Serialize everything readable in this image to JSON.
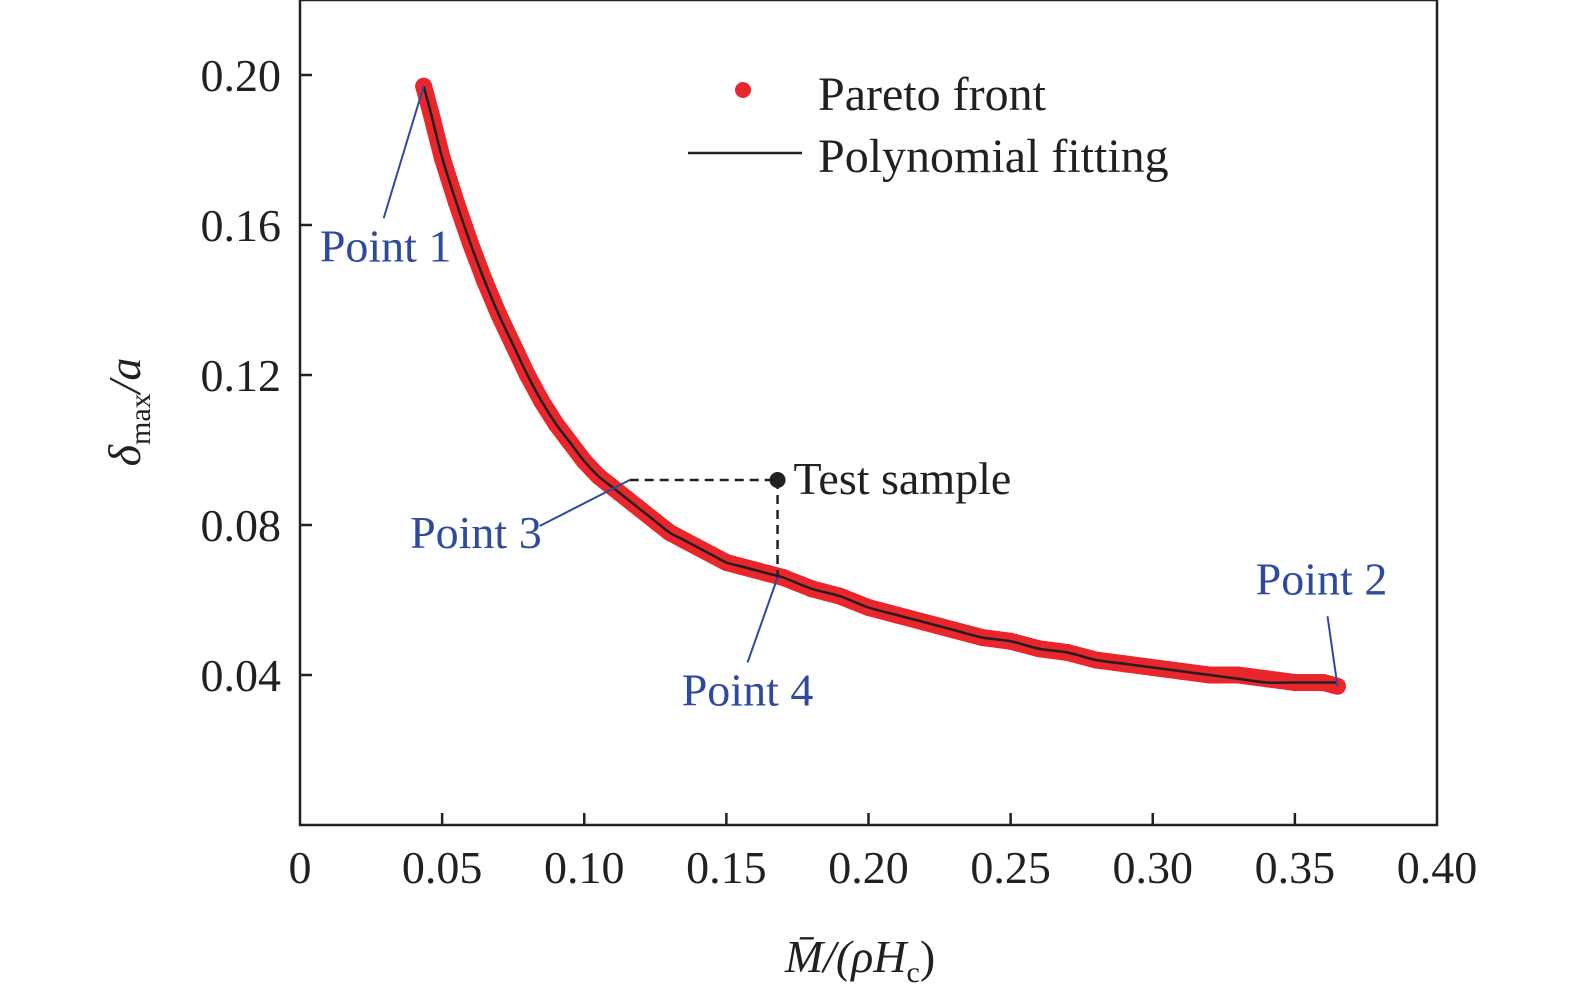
{
  "chart_data": {
    "type": "scatter",
    "xlabel": {
      "main": "M̄/(ρH",
      "sub": "c",
      "close": ")"
    },
    "ylabel": {
      "main": "δ",
      "sub": "max",
      "rest": "/a"
    },
    "xlim": [
      0,
      0.4
    ],
    "ylim": [
      0,
      0.22
    ],
    "x_ticks": [
      {
        "value": 0,
        "label": "0"
      },
      {
        "value": 0.05,
        "label": "0.05"
      },
      {
        "value": 0.1,
        "label": "0.10"
      },
      {
        "value": 0.15,
        "label": "0.15"
      },
      {
        "value": 0.2,
        "label": "0.20"
      },
      {
        "value": 0.25,
        "label": "0.25"
      },
      {
        "value": 0.3,
        "label": "0.30"
      },
      {
        "value": 0.35,
        "label": "0.35"
      },
      {
        "value": 0.4,
        "label": "0.40"
      }
    ],
    "y_ticks": [
      {
        "value": 0.04,
        "label": "0.04"
      },
      {
        "value": 0.08,
        "label": "0.08"
      },
      {
        "value": 0.12,
        "label": "0.12"
      },
      {
        "value": 0.16,
        "label": "0.16"
      },
      {
        "value": 0.2,
        "label": "0.20"
      }
    ],
    "grid": false,
    "legend_position": "top-right",
    "series": [
      {
        "name": "Pareto front",
        "kind": "scatter",
        "color": "#e8262b",
        "x": [
          0.0435,
          0.046,
          0.05,
          0.055,
          0.06,
          0.065,
          0.07,
          0.075,
          0.08,
          0.085,
          0.09,
          0.095,
          0.1,
          0.105,
          0.11,
          0.115,
          0.12,
          0.125,
          0.13,
          0.135,
          0.14,
          0.145,
          0.15,
          0.155,
          0.16,
          0.165,
          0.17,
          0.18,
          0.19,
          0.2,
          0.21,
          0.22,
          0.23,
          0.24,
          0.25,
          0.26,
          0.27,
          0.28,
          0.29,
          0.3,
          0.31,
          0.32,
          0.33,
          0.34,
          0.35,
          0.36,
          0.365
        ],
        "y": [
          0.197,
          0.19,
          0.178,
          0.166,
          0.155,
          0.145,
          0.136,
          0.128,
          0.12,
          0.113,
          0.107,
          0.102,
          0.097,
          0.093,
          0.09,
          0.087,
          0.084,
          0.081,
          0.078,
          0.076,
          0.074,
          0.072,
          0.07,
          0.069,
          0.068,
          0.067,
          0.066,
          0.063,
          0.061,
          0.058,
          0.056,
          0.054,
          0.052,
          0.05,
          0.049,
          0.047,
          0.046,
          0.044,
          0.043,
          0.042,
          0.041,
          0.04,
          0.04,
          0.039,
          0.038,
          0.038,
          0.037
        ]
      },
      {
        "name": "Polynomial fitting",
        "kind": "line",
        "color": "#231f20",
        "x": [
          0.0435,
          0.046,
          0.05,
          0.055,
          0.06,
          0.065,
          0.07,
          0.075,
          0.08,
          0.085,
          0.09,
          0.095,
          0.1,
          0.105,
          0.11,
          0.115,
          0.12,
          0.125,
          0.13,
          0.135,
          0.14,
          0.145,
          0.15,
          0.155,
          0.16,
          0.165,
          0.17,
          0.18,
          0.19,
          0.2,
          0.21,
          0.22,
          0.23,
          0.24,
          0.25,
          0.26,
          0.27,
          0.28,
          0.29,
          0.3,
          0.31,
          0.32,
          0.33,
          0.34,
          0.35,
          0.36,
          0.365
        ],
        "y": [
          0.197,
          0.19,
          0.178,
          0.166,
          0.155,
          0.145,
          0.136,
          0.128,
          0.12,
          0.113,
          0.107,
          0.102,
          0.097,
          0.093,
          0.09,
          0.087,
          0.084,
          0.081,
          0.078,
          0.076,
          0.074,
          0.072,
          0.07,
          0.069,
          0.068,
          0.067,
          0.066,
          0.063,
          0.061,
          0.058,
          0.056,
          0.054,
          0.052,
          0.05,
          0.049,
          0.047,
          0.046,
          0.044,
          0.043,
          0.042,
          0.041,
          0.04,
          0.039,
          0.038,
          0.038,
          0.038,
          0.038
        ]
      }
    ],
    "test_sample": {
      "label": "Test sample",
      "x": 0.168,
      "y": 0.092
    },
    "annotations": [
      {
        "label": "Point 1",
        "x": 0.0435,
        "y": 0.197
      },
      {
        "label": "Point 2",
        "x": 0.365,
        "y": 0.037
      },
      {
        "label": "Point 3",
        "x": 0.116,
        "y": 0.092
      },
      {
        "label": "Point 4",
        "x": 0.168,
        "y": 0.066
      }
    ]
  }
}
